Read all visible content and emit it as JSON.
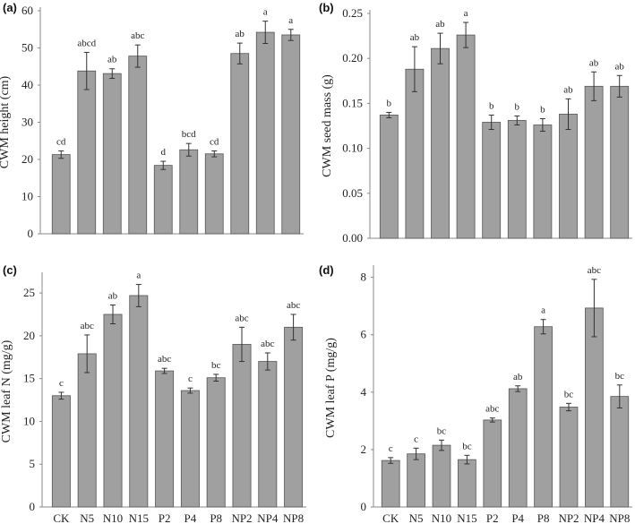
{
  "chart_data": [
    {
      "type": "bar",
      "panel": "(a)",
      "ylabel": "CWM height (cm)",
      "ylim": [
        0,
        60
      ],
      "yticks": [
        "0",
        "10",
        "20",
        "30",
        "40",
        "50",
        "60"
      ],
      "categories": [
        "CK",
        "N5",
        "N10",
        "N15",
        "P2",
        "P4",
        "P8",
        "NP2",
        "NP4",
        "NP8"
      ],
      "show_xticklabels": false,
      "values": [
        21.3,
        43.8,
        43.1,
        47.8,
        18.4,
        22.6,
        21.5,
        48.5,
        54.2,
        53.5
      ],
      "errors": [
        1.0,
        5.0,
        1.3,
        3.0,
        1.1,
        1.7,
        0.8,
        2.8,
        3.0,
        1.5
      ],
      "letters": [
        "cd",
        "abcd",
        "ab",
        "abc",
        "d",
        "bcd",
        "cd",
        "ab",
        "a",
        "a"
      ],
      "bar_color": "#a0a0a0"
    },
    {
      "type": "bar",
      "panel": "(b)",
      "ylabel": "CWM seed mass (g)",
      "ylim": [
        0,
        0.25
      ],
      "yticks": [
        "0.00",
        "0.05",
        "0.10",
        "0.15",
        "0.20",
        "0.25"
      ],
      "categories": [
        "CK",
        "N5",
        "N10",
        "N15",
        "P2",
        "P4",
        "P8",
        "NP2",
        "NP4",
        "NP8"
      ],
      "show_xticklabels": false,
      "values": [
        0.137,
        0.188,
        0.211,
        0.226,
        0.129,
        0.131,
        0.126,
        0.138,
        0.169,
        0.169
      ],
      "errors": [
        0.003,
        0.025,
        0.017,
        0.014,
        0.008,
        0.005,
        0.007,
        0.017,
        0.016,
        0.012
      ],
      "letters": [
        "b",
        "ab",
        "ab",
        "a",
        "b",
        "b",
        "b",
        "ab",
        "ab",
        "ab"
      ],
      "bar_color": "#a0a0a0"
    },
    {
      "type": "bar",
      "panel": "(c)",
      "ylabel": "CWM leaf N (mg/g)",
      "ylim": [
        0,
        27
      ],
      "yticks": [
        "0",
        "5",
        "10",
        "15",
        "20",
        "25"
      ],
      "categories": [
        "CK",
        "N5",
        "N10",
        "N15",
        "P2",
        "P4",
        "P8",
        "NP2",
        "NP4",
        "NP8"
      ],
      "show_xticklabels": true,
      "values": [
        13.0,
        17.9,
        22.5,
        24.7,
        15.9,
        13.6,
        15.1,
        19.0,
        17.0,
        21.0
      ],
      "errors": [
        0.4,
        2.2,
        1.1,
        1.3,
        0.3,
        0.3,
        0.4,
        2.0,
        1.0,
        1.5
      ],
      "letters": [
        "c",
        "abc",
        "ab",
        "a",
        "abc",
        "c",
        "bc",
        "abc",
        "abc",
        "abc"
      ],
      "bar_color": "#a0a0a0"
    },
    {
      "type": "bar",
      "panel": "(d)",
      "ylabel": "CWM leaf P (mg/g)",
      "ylim": [
        0,
        8.3
      ],
      "yticks": [
        "0",
        "2",
        "4",
        "6",
        "8"
      ],
      "categories": [
        "CK",
        "N5",
        "N10",
        "N15",
        "P2",
        "P4",
        "P8",
        "NP2",
        "NP4",
        "NP8"
      ],
      "show_xticklabels": true,
      "values": [
        1.62,
        1.85,
        2.15,
        1.65,
        3.03,
        4.12,
        6.28,
        3.48,
        6.93,
        3.85
      ],
      "errors": [
        0.1,
        0.2,
        0.18,
        0.15,
        0.07,
        0.1,
        0.25,
        0.13,
        1.0,
        0.4
      ],
      "letters": [
        "c",
        "c",
        "bc",
        "bc",
        "abc",
        "ab",
        "a",
        "bc",
        "abc",
        "bc"
      ],
      "bar_color": "#a0a0a0"
    }
  ]
}
